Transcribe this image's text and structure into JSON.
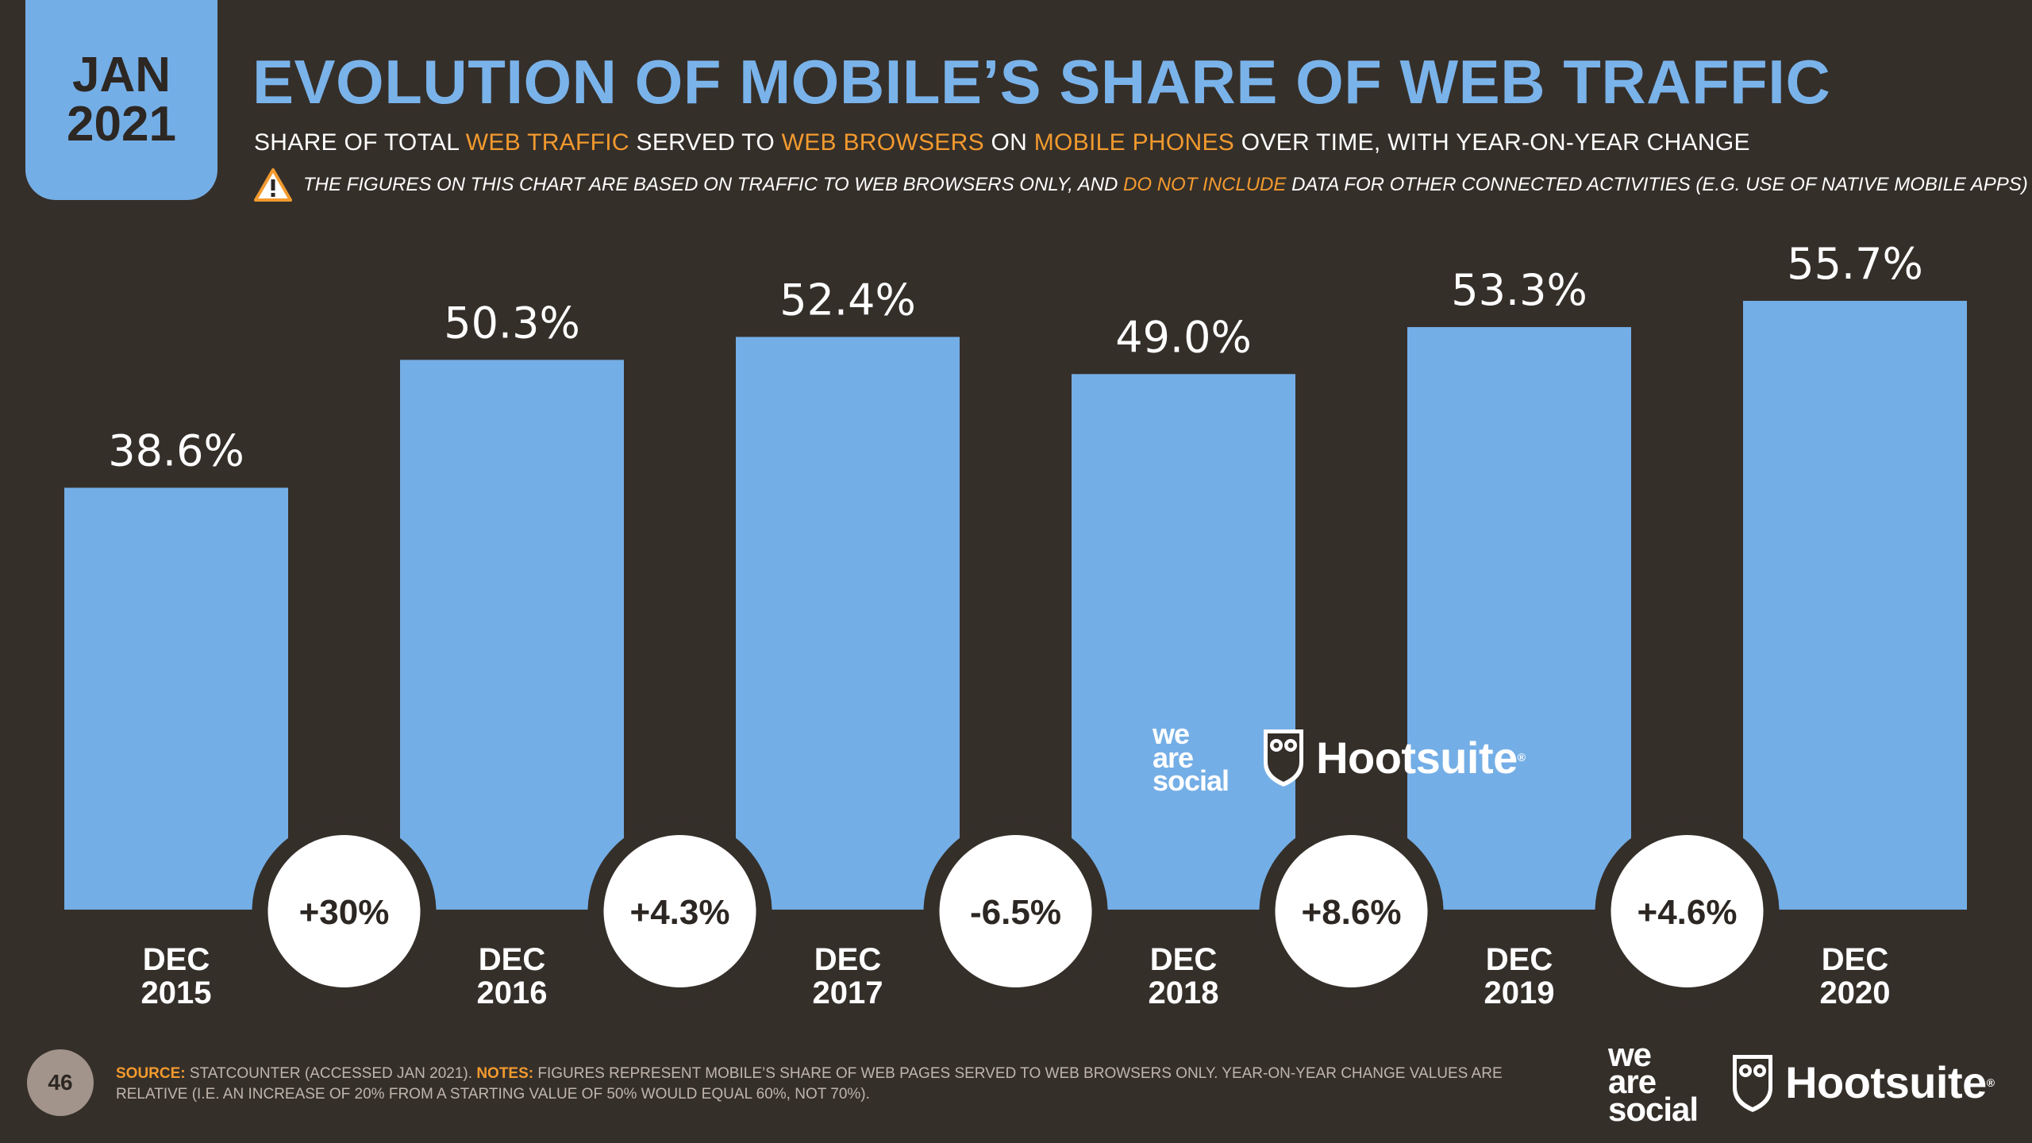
{
  "badge": {
    "month": "JAN",
    "year": "2021"
  },
  "title": "EVOLUTION OF MOBILE’S SHARE OF WEB TRAFFIC",
  "subtitle": {
    "p1": "SHARE OF TOTAL ",
    "h1": "WEB TRAFFIC",
    "p2": " SERVED TO ",
    "h2": "WEB BROWSERS",
    "p3": " ON ",
    "h3": "MOBILE PHONES",
    "p4": " OVER TIME, WITH YEAR-ON-YEAR CHANGE"
  },
  "warning": {
    "p1": "THE FIGURES ON THIS CHART ARE BASED ON TRAFFIC TO WEB BROWSERS ONLY, AND ",
    "h1": "DO NOT INCLUDE",
    "p2": " DATA FOR OTHER CONNECTED ACTIVITIES (E.G. USE OF NATIVE MOBILE APPS)"
  },
  "chart_data": {
    "type": "bar",
    "title": "EVOLUTION OF MOBILE’S SHARE OF WEB TRAFFIC",
    "categories": [
      [
        "DEC",
        "2015"
      ],
      [
        "DEC",
        "2016"
      ],
      [
        "DEC",
        "2017"
      ],
      [
        "DEC",
        "2018"
      ],
      [
        "DEC",
        "2019"
      ],
      [
        "DEC",
        "2020"
      ]
    ],
    "values": [
      38.6,
      50.3,
      52.4,
      49.0,
      53.3,
      55.7
    ],
    "value_labels": [
      "38.6%",
      "50.3%",
      "52.4%",
      "49.0%",
      "53.3%",
      "55.7%"
    ],
    "yoy_changes": [
      "+30%",
      "+4.3%",
      "-6.5%",
      "+8.6%",
      "+4.6%"
    ],
    "unit": "%",
    "ylim": [
      0,
      60
    ],
    "bar_color": "#74aee6",
    "xlabel": "",
    "ylabel": ""
  },
  "brand": {
    "agency_lines": [
      "we",
      "are",
      "social"
    ],
    "partner": "Hootsuite",
    "registered": "®"
  },
  "footer": {
    "page_number": "46",
    "source_label": "SOURCE:",
    "source_text": " STATCOUNTER (ACCESSED JAN 2021). ",
    "notes_label": "NOTES:",
    "notes_text": " FIGURES REPRESENT MOBILE’S SHARE OF WEB PAGES SERVED TO WEB BROWSERS ONLY. YEAR-ON-YEAR CHANGE VALUES ARE RELATIVE (I.E. AN INCREASE OF 20% FROM A STARTING VALUE OF 50% WOULD EQUAL 60%, NOT 70%)."
  },
  "colors": {
    "background": "#352f2a",
    "accent": "#74aee6",
    "highlight": "#f29a2e"
  }
}
